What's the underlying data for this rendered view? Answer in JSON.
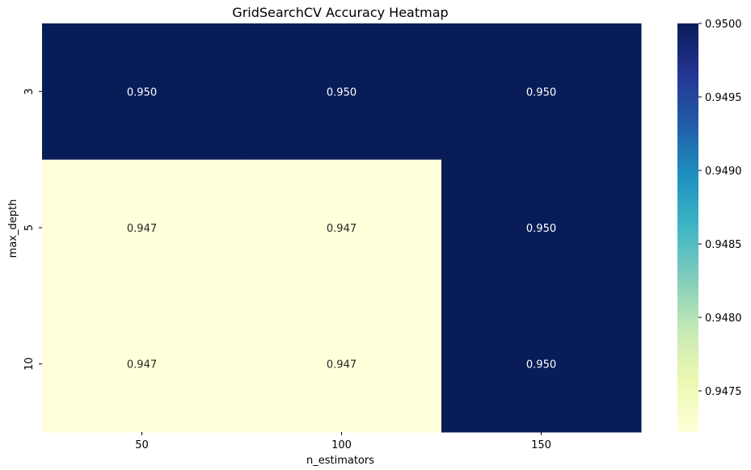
{
  "chart_data": {
    "type": "heatmap",
    "title": "GridSearchCV Accuracy Heatmap",
    "xlabel": "n_estimators",
    "ylabel": "max_depth",
    "x_categories": [
      "50",
      "100",
      "150"
    ],
    "y_categories": [
      "3",
      "5",
      "10"
    ],
    "values": [
      [
        0.95,
        0.95,
        0.95
      ],
      [
        0.947,
        0.947,
        0.95
      ],
      [
        0.947,
        0.947,
        0.95
      ]
    ],
    "cell_labels": [
      [
        "0.950",
        "0.950",
        "0.950"
      ],
      [
        "0.947",
        "0.947",
        "0.950"
      ],
      [
        "0.947",
        "0.947",
        "0.950"
      ]
    ],
    "colormap": "YlGnBu",
    "colorbar": {
      "range": [
        0.94722,
        0.95
      ],
      "ticks": [
        0.9475,
        0.948,
        0.9485,
        0.949,
        0.9495,
        0.95
      ],
      "tick_labels": [
        "0.9475",
        "0.9480",
        "0.9485",
        "0.9490",
        "0.9495",
        "0.9500"
      ]
    }
  }
}
